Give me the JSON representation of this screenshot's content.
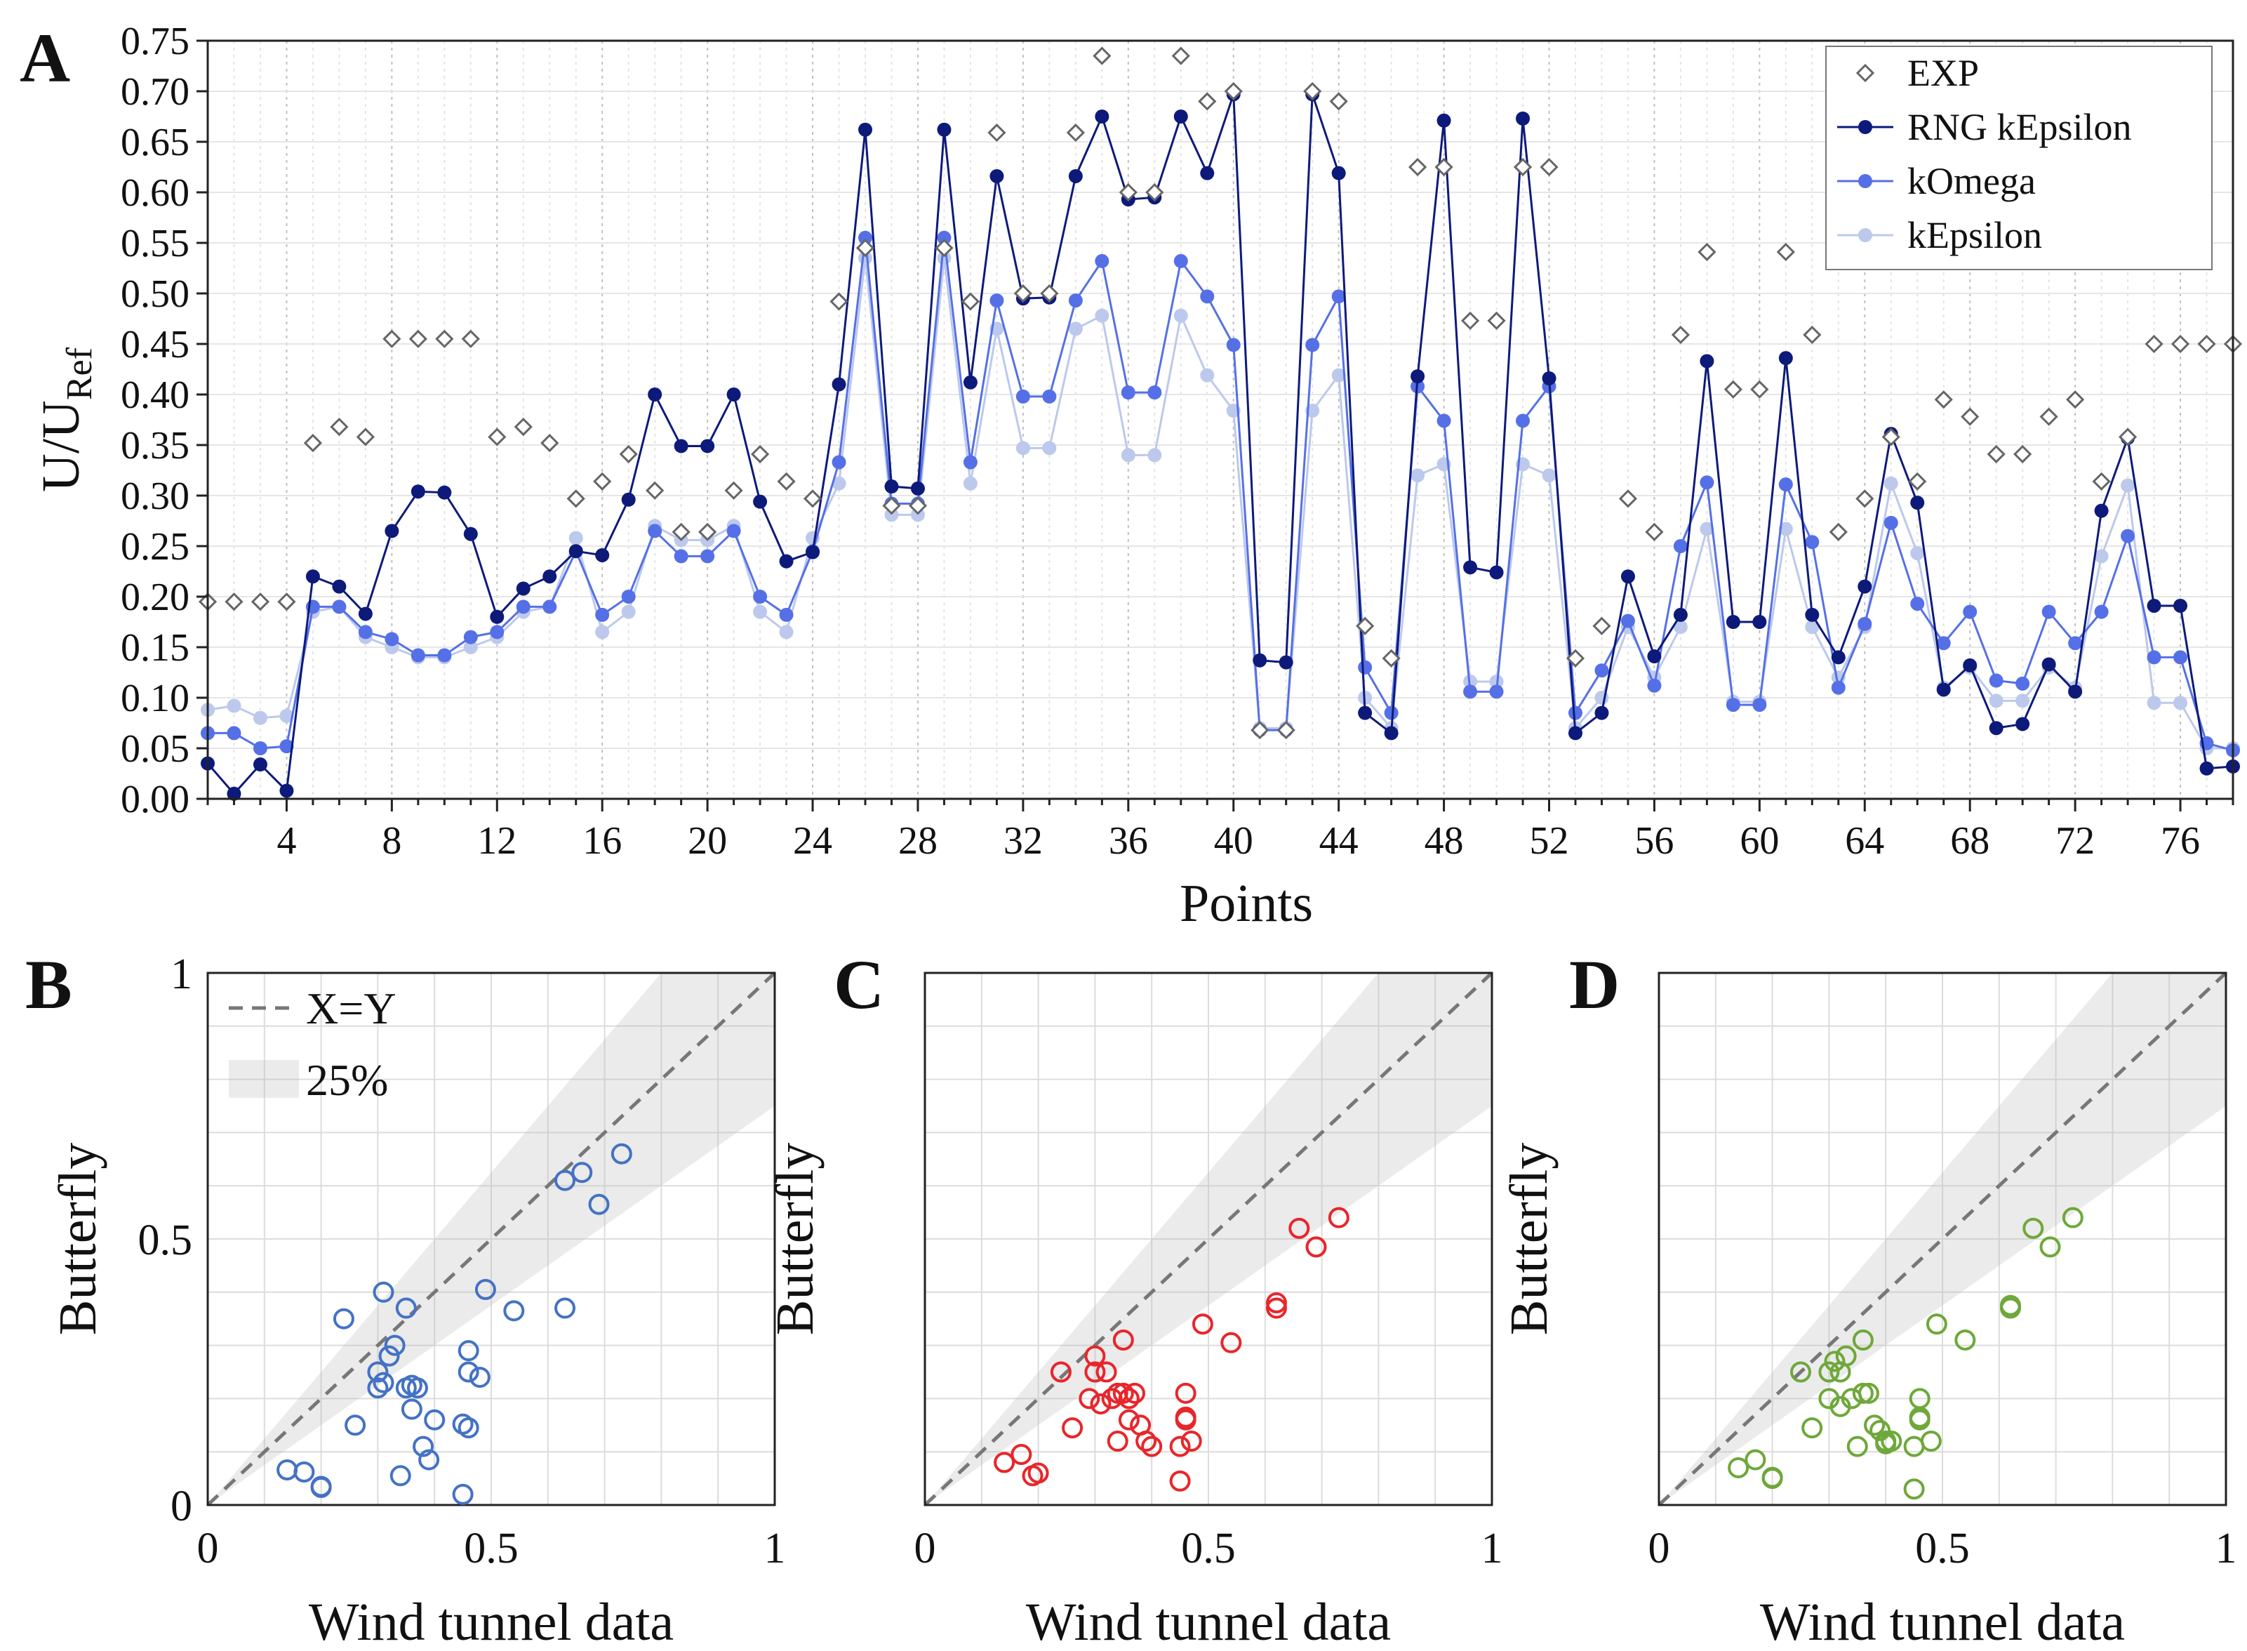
{
  "panels": {
    "a": "A",
    "b": "B",
    "c": "C",
    "d": "D"
  },
  "chart_data": [
    {
      "id": "A",
      "type": "line",
      "xlabel": "Points",
      "ylabel": "U/U",
      "ylabel_sub": "Ref",
      "xlim": [
        1,
        78
      ],
      "ylim": [
        0,
        0.75
      ],
      "grid": true,
      "legend_position": "top-right",
      "xticks": [
        4,
        8,
        12,
        16,
        20,
        24,
        28,
        32,
        36,
        40,
        44,
        48,
        52,
        56,
        60,
        64,
        68,
        72,
        76
      ],
      "yticks": [
        "0.00",
        "0.05",
        "0.10",
        "0.15",
        "0.20",
        "0.25",
        "0.30",
        "0.35",
        "0.40",
        "0.45",
        "0.50",
        "0.55",
        "0.60",
        "0.65",
        "0.70",
        "0.75"
      ],
      "series": [
        {
          "name": "EXP",
          "style": "diamond-open",
          "color": "#666666",
          "values": [
            0.195,
            0.195,
            0.195,
            0.195,
            0.352,
            0.368,
            0.358,
            0.455,
            0.455,
            0.455,
            0.455,
            0.358,
            0.368,
            0.352,
            0.297,
            0.314,
            0.341,
            0.305,
            0.264,
            0.264,
            0.305,
            0.341,
            0.314,
            0.297,
            0.492,
            0.545,
            0.29,
            0.29,
            0.545,
            0.492,
            0.659,
            0.5,
            0.5,
            0.659,
            0.735,
            0.6,
            0.6,
            0.735,
            0.69,
            0.7,
            0.068,
            0.068,
            0.7,
            0.69,
            0.171,
            0.139,
            0.625,
            0.625,
            0.473,
            0.473,
            0.625,
            0.625,
            0.139,
            0.171,
            0.297,
            0.264,
            0.459,
            0.541,
            0.405,
            0.405,
            0.541,
            0.459,
            0.264,
            0.297,
            0.358,
            0.314,
            0.395,
            0.378,
            0.341,
            0.341,
            0.378,
            0.395,
            0.314,
            0.358,
            0.45,
            0.45,
            0.45,
            0.45
          ]
        },
        {
          "name": "RNG kEpsilon",
          "style": "line-dot",
          "color": "#0d1a7a",
          "values": [
            0.035,
            0.005,
            0.034,
            0.008,
            0.22,
            0.21,
            0.183,
            0.265,
            0.304,
            0.303,
            0.262,
            0.18,
            0.208,
            0.22,
            0.245,
            0.241,
            0.296,
            0.4,
            0.349,
            0.349,
            0.4,
            0.294,
            0.235,
            0.244,
            0.41,
            0.662,
            0.309,
            0.307,
            0.662,
            0.412,
            0.616,
            0.495,
            0.496,
            0.616,
            0.675,
            0.593,
            0.595,
            0.675,
            0.619,
            0.697,
            0.137,
            0.135,
            0.697,
            0.619,
            0.085,
            0.065,
            0.418,
            0.671,
            0.229,
            0.224,
            0.673,
            0.416,
            0.065,
            0.085,
            0.22,
            0.141,
            0.182,
            0.433,
            0.175,
            0.175,
            0.436,
            0.182,
            0.14,
            0.21,
            0.361,
            0.293,
            0.108,
            0.132,
            0.07,
            0.074,
            0.133,
            0.106,
            0.285,
            0.357,
            0.191,
            0.191,
            0.03,
            0.032
          ]
        },
        {
          "name": "kOmega",
          "style": "line-dot",
          "color": "#5570e6",
          "values": [
            0.065,
            0.065,
            0.05,
            0.052,
            0.19,
            0.19,
            0.165,
            0.158,
            0.142,
            0.142,
            0.16,
            0.165,
            0.19,
            0.19,
            0.245,
            0.182,
            0.2,
            0.265,
            0.24,
            0.24,
            0.265,
            0.2,
            0.182,
            0.245,
            0.333,
            0.555,
            0.292,
            0.292,
            0.555,
            0.333,
            0.493,
            0.398,
            0.398,
            0.493,
            0.532,
            0.402,
            0.402,
            0.532,
            0.497,
            0.449,
            0.068,
            0.068,
            0.449,
            0.497,
            0.13,
            0.085,
            0.408,
            0.374,
            0.106,
            0.106,
            0.374,
            0.408,
            0.085,
            0.127,
            0.176,
            0.112,
            0.25,
            0.313,
            0.093,
            0.093,
            0.311,
            0.254,
            0.11,
            0.173,
            0.273,
            0.193,
            0.154,
            0.185,
            0.117,
            0.114,
            0.185,
            0.154,
            0.185,
            0.26,
            0.14,
            0.14,
            0.055,
            0.048
          ]
        },
        {
          "name": "kEpsilon",
          "style": "line-dot",
          "color": "#bcc9ec",
          "values": [
            0.088,
            0.092,
            0.08,
            0.082,
            0.185,
            0.19,
            0.16,
            0.15,
            0.14,
            0.14,
            0.15,
            0.16,
            0.185,
            0.19,
            0.258,
            0.165,
            0.185,
            0.27,
            0.256,
            0.256,
            0.27,
            0.185,
            0.165,
            0.258,
            0.312,
            0.535,
            0.281,
            0.281,
            0.535,
            0.312,
            0.465,
            0.347,
            0.347,
            0.465,
            0.478,
            0.34,
            0.34,
            0.478,
            0.419,
            0.384,
            0.07,
            0.07,
            0.384,
            0.419,
            0.1,
            0.07,
            0.32,
            0.331,
            0.116,
            0.116,
            0.331,
            0.32,
            0.07,
            0.1,
            0.17,
            0.12,
            0.17,
            0.267,
            0.096,
            0.096,
            0.267,
            0.17,
            0.12,
            0.17,
            0.312,
            0.243,
            0.11,
            0.13,
            0.097,
            0.097,
            0.13,
            0.11,
            0.24,
            0.31,
            0.095,
            0.095,
            0.05,
            0.05
          ]
        }
      ]
    },
    {
      "id": "B",
      "type": "scatter",
      "xlabel": "Wind tunnel data",
      "ylabel": "Butterfly",
      "xlim": [
        0,
        1
      ],
      "ylim": [
        0,
        1
      ],
      "xticks": [
        "0",
        "0.5",
        "1"
      ],
      "yticks": [
        "0",
        "0.5",
        "1"
      ],
      "color": "#4472c4",
      "band": "25%",
      "reference": "X=Y",
      "legend": [
        "X=Y",
        "25%"
      ],
      "x": [
        0.14,
        0.17,
        0.2,
        0.2,
        0.24,
        0.26,
        0.3,
        0.3,
        0.31,
        0.32,
        0.31,
        0.33,
        0.34,
        0.35,
        0.35,
        0.36,
        0.36,
        0.37,
        0.38,
        0.39,
        0.4,
        0.45,
        0.45,
        0.46,
        0.46,
        0.46,
        0.48,
        0.49,
        0.54,
        0.63,
        0.63,
        0.66,
        0.69,
        0.73
      ],
      "y": [
        0.066,
        0.062,
        0.035,
        0.033,
        0.35,
        0.15,
        0.25,
        0.22,
        0.4,
        0.28,
        0.23,
        0.3,
        0.055,
        0.37,
        0.22,
        0.18,
        0.225,
        0.22,
        0.11,
        0.085,
        0.16,
        0.152,
        0.02,
        0.29,
        0.25,
        0.145,
        0.24,
        0.405,
        0.365,
        0.61,
        0.37,
        0.625,
        0.565,
        0.66
      ]
    },
    {
      "id": "C",
      "type": "scatter",
      "xlabel": "Wind tunnel data",
      "ylabel": "Butterfly",
      "xlim": [
        0,
        1
      ],
      "ylim": [
        0,
        1
      ],
      "xticks": [
        "0",
        "0.5",
        "1"
      ],
      "yticks": [],
      "color": "#e8262b",
      "band": "25%",
      "reference": "X=Y",
      "x": [
        0.14,
        0.17,
        0.19,
        0.2,
        0.24,
        0.26,
        0.29,
        0.3,
        0.3,
        0.31,
        0.32,
        0.33,
        0.34,
        0.34,
        0.35,
        0.35,
        0.36,
        0.36,
        0.37,
        0.38,
        0.39,
        0.4,
        0.45,
        0.45,
        0.46,
        0.46,
        0.46,
        0.47,
        0.49,
        0.54,
        0.62,
        0.62,
        0.66,
        0.69,
        0.73
      ],
      "y": [
        0.08,
        0.095,
        0.055,
        0.06,
        0.25,
        0.145,
        0.2,
        0.25,
        0.28,
        0.19,
        0.25,
        0.2,
        0.12,
        0.21,
        0.21,
        0.31,
        0.16,
        0.2,
        0.21,
        0.15,
        0.12,
        0.11,
        0.045,
        0.11,
        0.16,
        0.165,
        0.21,
        0.12,
        0.34,
        0.305,
        0.37,
        0.38,
        0.52,
        0.485,
        0.54
      ]
    },
    {
      "id": "D",
      "type": "scatter",
      "xlabel": "Wind tunnel data",
      "ylabel": "Butterfly",
      "xlim": [
        0,
        1
      ],
      "ylim": [
        0,
        1
      ],
      "xticks": [
        "0",
        "0.5",
        "1"
      ],
      "yticks": [],
      "color": "#6ea83a",
      "band": "25%",
      "reference": "X=Y",
      "x": [
        0.14,
        0.17,
        0.2,
        0.2,
        0.25,
        0.27,
        0.3,
        0.3,
        0.31,
        0.32,
        0.32,
        0.33,
        0.34,
        0.35,
        0.36,
        0.36,
        0.37,
        0.38,
        0.39,
        0.4,
        0.4,
        0.41,
        0.45,
        0.45,
        0.46,
        0.46,
        0.46,
        0.48,
        0.49,
        0.54,
        0.62,
        0.62,
        0.66,
        0.69,
        0.73
      ],
      "y": [
        0.07,
        0.085,
        0.05,
        0.052,
        0.25,
        0.145,
        0.2,
        0.25,
        0.27,
        0.25,
        0.185,
        0.28,
        0.2,
        0.11,
        0.21,
        0.31,
        0.21,
        0.15,
        0.14,
        0.12,
        0.115,
        0.12,
        0.03,
        0.11,
        0.16,
        0.165,
        0.2,
        0.12,
        0.34,
        0.31,
        0.37,
        0.375,
        0.52,
        0.485,
        0.54
      ]
    }
  ]
}
